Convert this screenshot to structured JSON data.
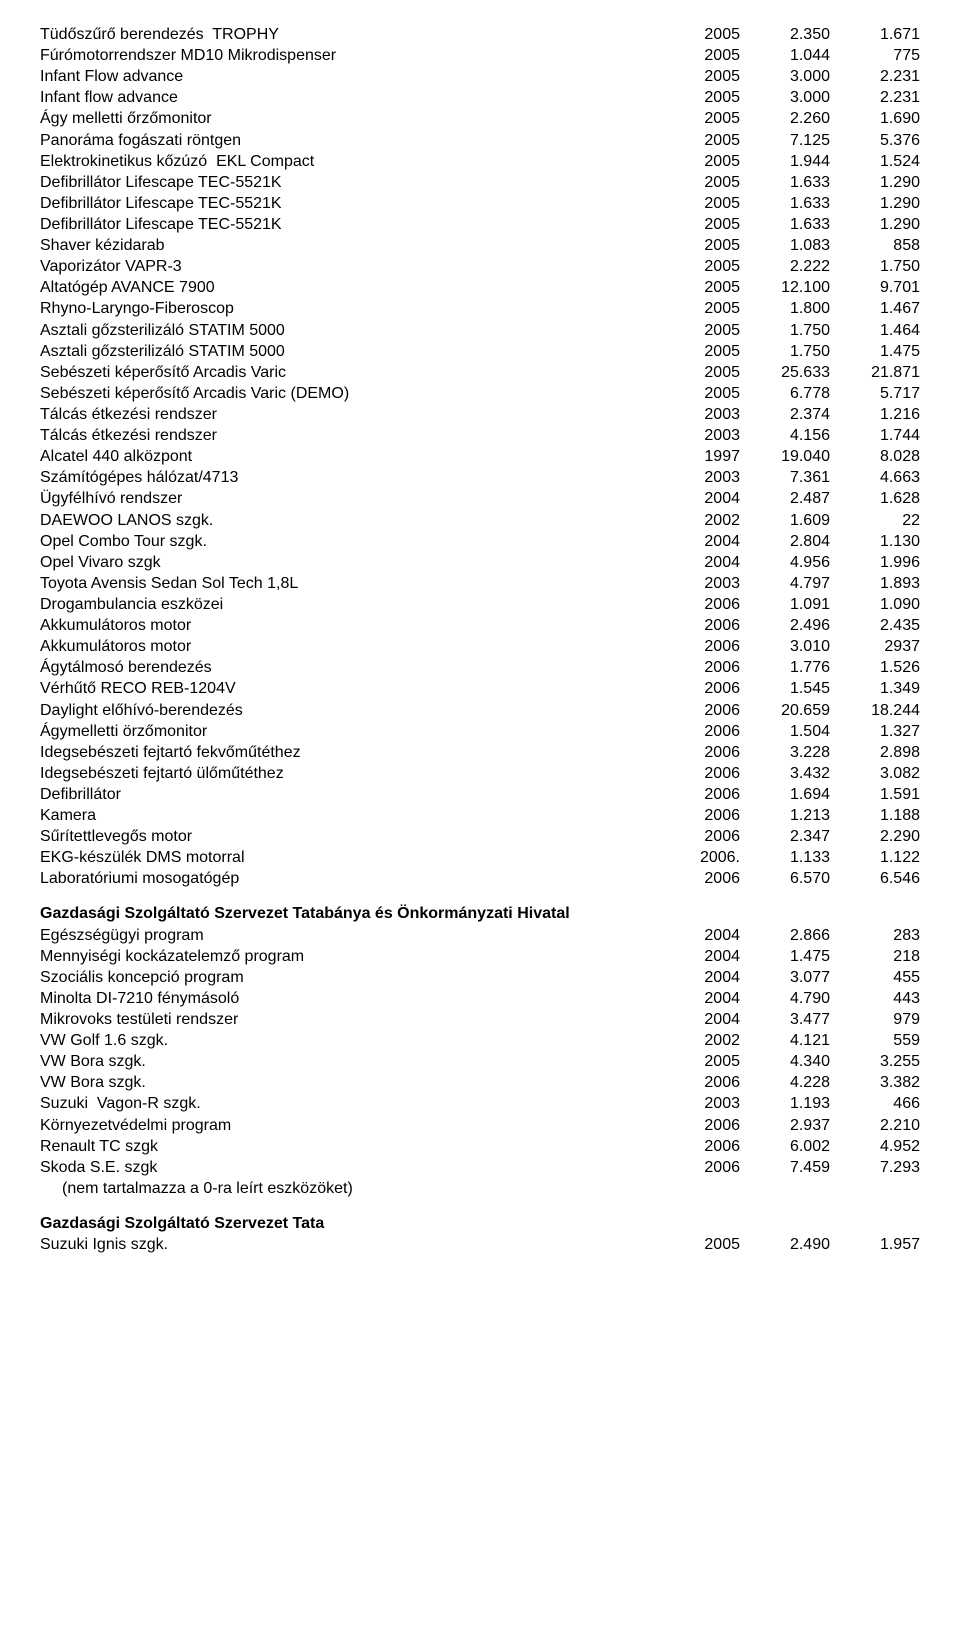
{
  "font": {
    "family": "Arial",
    "size_pt": 12,
    "color": "#000000"
  },
  "background_color": "#ffffff",
  "columns": {
    "name_flex": 1,
    "year_width": 70,
    "v1_width": 90,
    "v2_width": 90
  },
  "main_rows": [
    {
      "name": "Tüdőszűrő berendezés  TROPHY",
      "year": "2005",
      "v1": "2.350",
      "v2": "1.671"
    },
    {
      "name": "Fúrómotorrendszer MD10 Mikrodispenser",
      "year": "2005",
      "v1": "1.044",
      "v2": "775"
    },
    {
      "name": "Infant Flow advance",
      "year": "2005",
      "v1": "3.000",
      "v2": "2.231"
    },
    {
      "name": "Infant flow advance",
      "year": "2005",
      "v1": "3.000",
      "v2": "2.231"
    },
    {
      "name": "Ágy melletti őrzőmonitor",
      "year": "2005",
      "v1": "2.260",
      "v2": "1.690"
    },
    {
      "name": "Panoráma fogászati röntgen",
      "year": "2005",
      "v1": "7.125",
      "v2": "5.376"
    },
    {
      "name": "Elektrokinetikus kőzúzó  EKL Compact",
      "year": "2005",
      "v1": "1.944",
      "v2": "1.524"
    },
    {
      "name": "Defibrillátor Lifescape TEC-5521K",
      "year": "2005",
      "v1": "1.633",
      "v2": "1.290"
    },
    {
      "name": "Defibrillátor Lifescape TEC-5521K",
      "year": "2005",
      "v1": "1.633",
      "v2": "1.290"
    },
    {
      "name": "Defibrillátor Lifescape TEC-5521K",
      "year": "2005",
      "v1": "1.633",
      "v2": "1.290"
    },
    {
      "name": "Shaver kézidarab",
      "year": "2005",
      "v1": "1.083",
      "v2": "858"
    },
    {
      "name": "Vaporizátor VAPR-3",
      "year": "2005",
      "v1": "2.222",
      "v2": "1.750"
    },
    {
      "name": "Altatógép AVANCE 7900",
      "year": "2005",
      "v1": "12.100",
      "v2": "9.701"
    },
    {
      "name": "Rhyno-Laryngo-Fiberoscop",
      "year": "2005",
      "v1": "1.800",
      "v2": "1.467"
    },
    {
      "name": "Asztali gőzsterilizáló STATIM 5000",
      "year": "2005",
      "v1": "1.750",
      "v2": "1.464"
    },
    {
      "name": "Asztali gőzsterilizáló STATIM 5000",
      "year": "2005",
      "v1": "1.750",
      "v2": "1.475"
    },
    {
      "name": "Sebészeti képerősítő Arcadis Varic",
      "year": "2005",
      "v1": "25.633",
      "v2": "21.871"
    },
    {
      "name": "Sebészeti képerősítő Arcadis Varic (DEMO)",
      "year": "2005",
      "v1": "6.778",
      "v2": "5.717"
    },
    {
      "name": "Tálcás étkezési rendszer",
      "year": "2003",
      "v1": "2.374",
      "v2": "1.216"
    },
    {
      "name": "Tálcás étkezési rendszer",
      "year": "2003",
      "v1": "4.156",
      "v2": "1.744"
    },
    {
      "name": "Alcatel 440 alközpont",
      "year": "1997",
      "v1": "19.040",
      "v2": "8.028"
    },
    {
      "name": "Számítógépes hálózat/4713",
      "year": "2003",
      "v1": "7.361",
      "v2": "4.663"
    },
    {
      "name": "Ügyfélhívó rendszer",
      "year": "2004",
      "v1": "2.487",
      "v2": "1.628"
    },
    {
      "name": "DAEWOO LANOS szgk.",
      "year": "2002",
      "v1": "1.609",
      "v2": "22"
    },
    {
      "name": "Opel Combo Tour szgk.",
      "year": "2004",
      "v1": "2.804",
      "v2": "1.130"
    },
    {
      "name": "Opel Vivaro szgk",
      "year": "2004",
      "v1": "4.956",
      "v2": "1.996"
    },
    {
      "name": "Toyota Avensis Sedan Sol Tech 1,8L",
      "year": "2003",
      "v1": "4.797",
      "v2": "1.893"
    },
    {
      "name": "Drogambulancia eszközei",
      "year": "2006",
      "v1": "1.091",
      "v2": "1.090"
    },
    {
      "name": "Akkumulátoros motor",
      "year": "2006",
      "v1": "2.496",
      "v2": "2.435"
    },
    {
      "name": "Akkumulátoros motor",
      "year": "2006",
      "v1": "3.010",
      "v2": "2937"
    },
    {
      "name": "Ágytálmosó berendezés",
      "year": "2006",
      "v1": "1.776",
      "v2": "1.526"
    },
    {
      "name": "Vérhűtő RECO REB-1204V",
      "year": "2006",
      "v1": "1.545",
      "v2": "1.349"
    },
    {
      "name": "Daylight előhívó-berendezés",
      "year": "2006",
      "v1": "20.659",
      "v2": "18.244"
    },
    {
      "name": "Ágymelletti örzőmonitor",
      "year": "2006",
      "v1": "1.504",
      "v2": "1.327"
    },
    {
      "name": "Idegsebészeti fejtartó fekvőműtéthez",
      "year": "2006",
      "v1": "3.228",
      "v2": "2.898"
    },
    {
      "name": "Idegsebészeti fejtartó ülőműtéthez",
      "year": "2006",
      "v1": "3.432",
      "v2": "3.082"
    },
    {
      "name": "Defibrillátor",
      "year": "2006",
      "v1": "1.694",
      "v2": "1.591"
    },
    {
      "name": "Kamera",
      "year": "2006",
      "v1": "1.213",
      "v2": "1.188"
    },
    {
      "name": "Sűrítettlevegős motor",
      "year": "2006",
      "v1": "2.347",
      "v2": "2.290"
    },
    {
      "name": "EKG-készülék DMS motorral",
      "year": "2006.",
      "v1": "1.133",
      "v2": "1.122"
    },
    {
      "name": "Laboratóriumi mosogatógép",
      "year": "2006",
      "v1": "6.570",
      "v2": "6.546"
    }
  ],
  "section2": {
    "heading": "Gazdasági Szolgáltató Szervezet Tatabánya és Önkormányzati Hivatal",
    "rows": [
      {
        "name": "Egészségügyi program",
        "year": "2004",
        "v1": "2.866",
        "v2": "283"
      },
      {
        "name": "Mennyiségi kockázatelemző program",
        "year": "2004",
        "v1": "1.475",
        "v2": "218"
      },
      {
        "name": "Szociális koncepció program",
        "year": "2004",
        "v1": "3.077",
        "v2": "455"
      },
      {
        "name": "Minolta DI-7210 fénymásoló",
        "year": "2004",
        "v1": "4.790",
        "v2": "443"
      },
      {
        "name": "Mikrovoks testületi rendszer",
        "year": "2004",
        "v1": "3.477",
        "v2": "979"
      },
      {
        "name": "VW Golf 1.6 szgk.",
        "year": "2002",
        "v1": "4.121",
        "v2": "559"
      },
      {
        "name": "VW Bora szgk.",
        "year": "2005",
        "v1": "4.340",
        "v2": "3.255"
      },
      {
        "name": "VW Bora szgk.",
        "year": "2006",
        "v1": "4.228",
        "v2": "3.382"
      },
      {
        "name": "Suzuki  Vagon-R szgk.",
        "year": "2003",
        "v1": "1.193",
        "v2": "466"
      },
      {
        "name": "Környezetvédelmi program",
        "year": "2006",
        "v1": "2.937",
        "v2": "2.210"
      },
      {
        "name": "Renault TC szgk",
        "year": "2006",
        "v1": "6.002",
        "v2": "4.952"
      },
      {
        "name": "Skoda S.E. szgk",
        "year": "2006",
        "v1": "7.459",
        "v2": "7.293"
      }
    ],
    "note": "(nem tartalmazza a 0-ra leírt eszközöket)"
  },
  "section3": {
    "heading": "Gazdasági Szolgáltató Szervezet Tata",
    "rows": [
      {
        "name": "Suzuki Ignis szgk.",
        "year": "2005",
        "v1": "2.490",
        "v2": "1.957"
      }
    ]
  }
}
